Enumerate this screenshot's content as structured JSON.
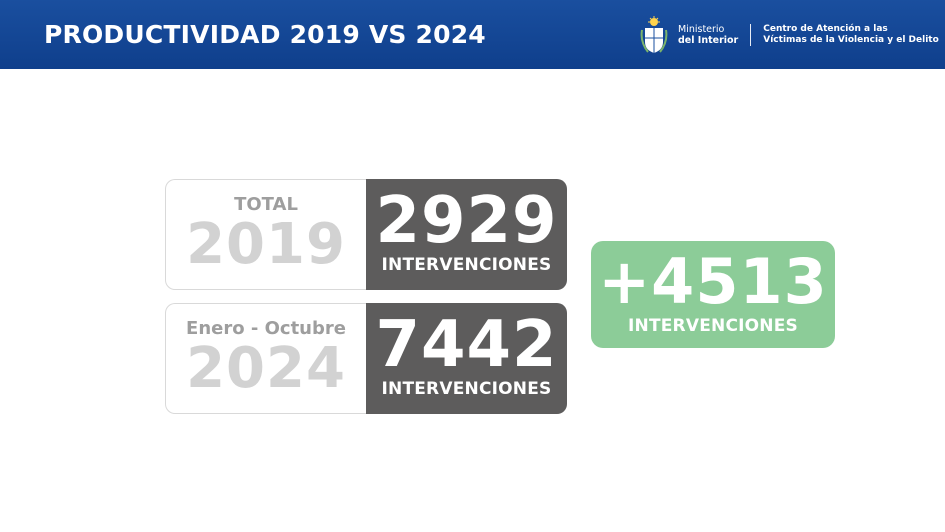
{
  "header": {
    "title": "PRODUCTIVIDAD 2019 VS 2024",
    "ministry_line1": "Ministerio",
    "ministry_line2": "del Interior",
    "center_line1": "Centro de Atención a las",
    "center_line2": "Víctimas de la Violencia y el Delito",
    "emblem_icon": "coat-of-arms-icon",
    "background_color": "#1a4f9f"
  },
  "cards": [
    {
      "label": "TOTAL",
      "year": "2019",
      "value": "2929",
      "unit": "INTERVENCIONES"
    },
    {
      "label": "Enero - Octubre",
      "year": "2024",
      "value": "7442",
      "unit": "INTERVENCIONES"
    }
  ],
  "difference": {
    "value": "+4513",
    "unit": "INTERVENCIONES",
    "color": "#8ccc98"
  },
  "colors": {
    "value_box": "#5d5c5c",
    "year_text": "#d2d2d2",
    "label_text": "#9e9e9e"
  }
}
